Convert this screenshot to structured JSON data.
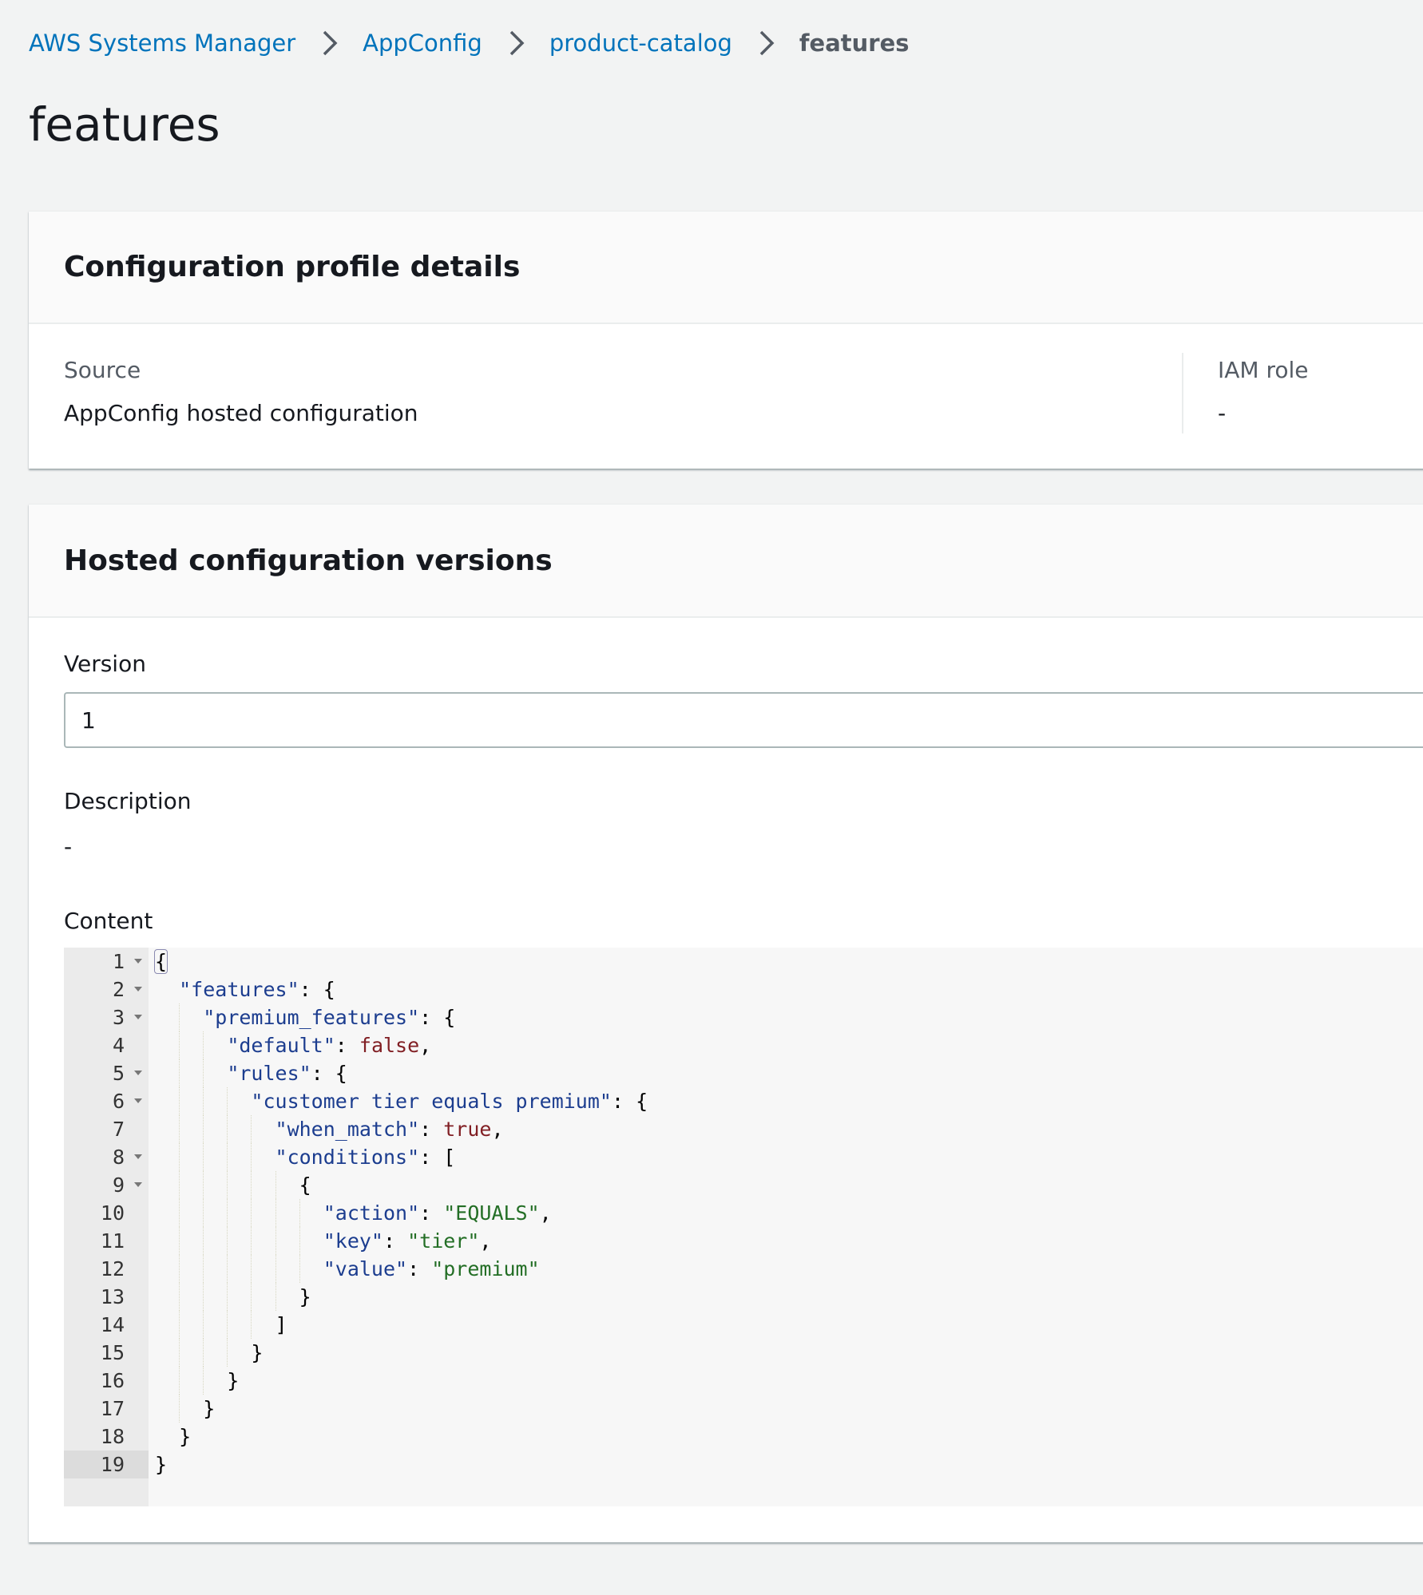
{
  "breadcrumb": [
    {
      "label": "AWS Systems Manager"
    },
    {
      "label": "AppConfig"
    },
    {
      "label": "product-catalog"
    },
    {
      "label": "features"
    }
  ],
  "page_title": "features",
  "profile_panel": {
    "title": "Configuration profile details",
    "source_label": "Source",
    "source_value": "AppConfig hosted configuration",
    "iam_label": "IAM role",
    "iam_value": "-"
  },
  "versions_panel": {
    "title": "Hosted configuration versions",
    "version_label": "Version",
    "version_value": "1",
    "description_label": "Description",
    "description_value": "-",
    "content_label": "Content"
  },
  "code_lines": [
    [
      [
        "p",
        "{"
      ]
    ],
    [
      [
        "p",
        "  "
      ],
      [
        "k",
        "\"features\""
      ],
      [
        "p",
        ": {"
      ]
    ],
    [
      [
        "p",
        "    "
      ],
      [
        "k",
        "\"premium_features\""
      ],
      [
        "p",
        ": {"
      ]
    ],
    [
      [
        "p",
        "      "
      ],
      [
        "k",
        "\"default\""
      ],
      [
        "p",
        ": "
      ],
      [
        "b",
        "false"
      ],
      [
        "p",
        ","
      ]
    ],
    [
      [
        "p",
        "      "
      ],
      [
        "k",
        "\"rules\""
      ],
      [
        "p",
        ": {"
      ]
    ],
    [
      [
        "p",
        "        "
      ],
      [
        "k",
        "\"customer tier equals premium\""
      ],
      [
        "p",
        ": {"
      ]
    ],
    [
      [
        "p",
        "          "
      ],
      [
        "k",
        "\"when_match\""
      ],
      [
        "p",
        ": "
      ],
      [
        "b",
        "true"
      ],
      [
        "p",
        ","
      ]
    ],
    [
      [
        "p",
        "          "
      ],
      [
        "k",
        "\"conditions\""
      ],
      [
        "p",
        ": ["
      ]
    ],
    [
      [
        "p",
        "            {"
      ]
    ],
    [
      [
        "p",
        "              "
      ],
      [
        "k",
        "\"action\""
      ],
      [
        "p",
        ": "
      ],
      [
        "s",
        "\"EQUALS\""
      ],
      [
        "p",
        ","
      ]
    ],
    [
      [
        "p",
        "              "
      ],
      [
        "k",
        "\"key\""
      ],
      [
        "p",
        ": "
      ],
      [
        "s",
        "\"tier\""
      ],
      [
        "p",
        ","
      ]
    ],
    [
      [
        "p",
        "              "
      ],
      [
        "k",
        "\"value\""
      ],
      [
        "p",
        ": "
      ],
      [
        "s",
        "\"premium\""
      ]
    ],
    [
      [
        "p",
        "            }"
      ]
    ],
    [
      [
        "p",
        "          ]"
      ]
    ],
    [
      [
        "p",
        "        }"
      ]
    ],
    [
      [
        "p",
        "      }"
      ]
    ],
    [
      [
        "p",
        "    }"
      ]
    ],
    [
      [
        "p",
        "  }"
      ]
    ],
    [
      [
        "p",
        "}"
      ]
    ]
  ],
  "foldable_lines": [
    1,
    2,
    3,
    5,
    6,
    8,
    9
  ],
  "active_line": 19,
  "colors": {
    "link": "#0073bb",
    "key": "#1c3d8f",
    "string": "#236e25",
    "boolean": "#811f24"
  }
}
